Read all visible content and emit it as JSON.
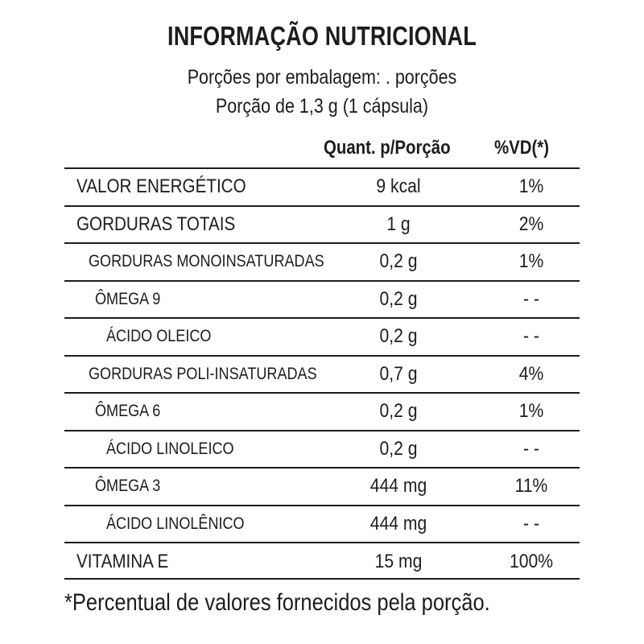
{
  "label": {
    "title": "INFORMAÇÃO NUTRICIONAL",
    "servings_per_package": "Porções por embalagem: . porções",
    "serving_size": "Porção de 1,3 g (1 cápsula)"
  },
  "table": {
    "headers": {
      "quantity": "Quant. p/Porção",
      "daily_value": "%VD(*)"
    },
    "rows": [
      {
        "name": "VALOR ENERGÉTICO",
        "quantity": "9 kcal",
        "daily_value": "1%"
      },
      {
        "name": "GORDURAS TOTAIS",
        "quantity": "1 g",
        "daily_value": "2%"
      },
      {
        "name": "GORDURAS MONOINSATURADAS",
        "quantity": "0,2 g",
        "daily_value": "1%"
      },
      {
        "name": "ÔMEGA 9",
        "quantity": "0,2 g",
        "daily_value": "- -"
      },
      {
        "name": "ÁCIDO OLEICO",
        "quantity": "0,2 g",
        "daily_value": "- -"
      },
      {
        "name": "GORDURAS POLI-INSATURADAS",
        "quantity": "0,7 g",
        "daily_value": "4%"
      },
      {
        "name": "ÔMEGA 6",
        "quantity": "0,2 g",
        "daily_value": "1%"
      },
      {
        "name": "ÁCIDO LINOLEICO",
        "quantity": "0,2 g",
        "daily_value": "- -"
      },
      {
        "name": "ÔMEGA 3",
        "quantity": "444 mg",
        "daily_value": "11%"
      },
      {
        "name": "ÁCIDO LINOLÊNICO",
        "quantity": "444 mg",
        "daily_value": "- -"
      },
      {
        "name": "VITAMINA E",
        "quantity": "15 mg",
        "daily_value": "100%"
      }
    ]
  },
  "footnote": "*Percentual de valores fornecidos pela porção."
}
